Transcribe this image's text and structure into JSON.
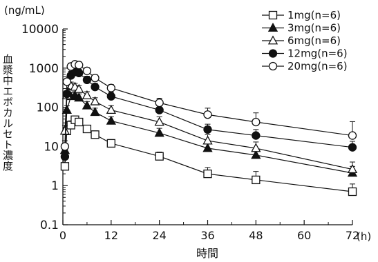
{
  "chart_data": {
    "type": "line",
    "title": "",
    "y_unit": "(ng/mL)",
    "x_unit": "(h)",
    "xlabel": "時間",
    "ylabel": "血漿中エボカルセト濃度",
    "y_scale": "log",
    "ylim": [
      0.1,
      10000
    ],
    "xlim": [
      0,
      72
    ],
    "x_ticks": [
      0,
      12,
      24,
      36,
      48,
      60,
      72
    ],
    "y_ticks": [
      "0.1",
      "1",
      "10",
      "100",
      "1000",
      "10000"
    ],
    "grid": false,
    "legend_position": "top-right",
    "series": [
      {
        "name": "1mg(n=6)",
        "marker": "square-open",
        "x": [
          0.5,
          1,
          2,
          3,
          4,
          6,
          8,
          12,
          24,
          36,
          48,
          72
        ],
        "y": [
          3.1,
          25,
          35,
          48,
          42,
          28,
          20,
          12,
          5.6,
          2,
          1.4,
          0.7
        ],
        "err": [
          0.6,
          8,
          10,
          12,
          9,
          6,
          5,
          3,
          1.6,
          0.9,
          0.9,
          0.4
        ]
      },
      {
        "name": "3mg(n=6)",
        "marker": "triangle-filled",
        "x": [
          0.5,
          1,
          2,
          3,
          4,
          6,
          8,
          12,
          24,
          36,
          48,
          72
        ],
        "y": [
          8,
          85,
          190,
          200,
          175,
          110,
          75,
          45,
          22,
          9,
          6,
          2.1
        ],
        "err": [
          3,
          25,
          50,
          50,
          45,
          30,
          20,
          12,
          7,
          3,
          2.5,
          1
        ]
      },
      {
        "name": "6mg(n=6)",
        "marker": "triangle-open",
        "x": [
          0.5,
          1,
          2,
          3,
          4,
          6,
          8,
          12,
          24,
          36,
          48,
          72
        ],
        "y": [
          25,
          200,
          350,
          330,
          290,
          200,
          140,
          85,
          42,
          14,
          9,
          2.6
        ],
        "err": [
          10,
          60,
          90,
          80,
          70,
          50,
          35,
          25,
          15,
          6,
          4,
          1.4
        ]
      },
      {
        "name": "12mg(n=6)",
        "marker": "circle-filled",
        "x": [
          0.5,
          1,
          2,
          3,
          4,
          6,
          8,
          12,
          24,
          36,
          48,
          72
        ],
        "y": [
          5.5,
          220,
          650,
          800,
          750,
          500,
          330,
          190,
          85,
          27,
          19,
          9.5
        ],
        "err": [
          2,
          80,
          180,
          200,
          180,
          120,
          80,
          50,
          30,
          10,
          8,
          4
        ]
      },
      {
        "name": "20mg(n=6)",
        "marker": "circle-open",
        "x": [
          0.5,
          1,
          2,
          3,
          4,
          6,
          8,
          12,
          24,
          36,
          48,
          72
        ],
        "y": [
          10,
          450,
          1100,
          1250,
          1200,
          850,
          560,
          310,
          130,
          65,
          42,
          19
        ],
        "err": [
          4,
          150,
          250,
          250,
          250,
          180,
          120,
          70,
          40,
          30,
          30,
          24
        ]
      }
    ]
  }
}
